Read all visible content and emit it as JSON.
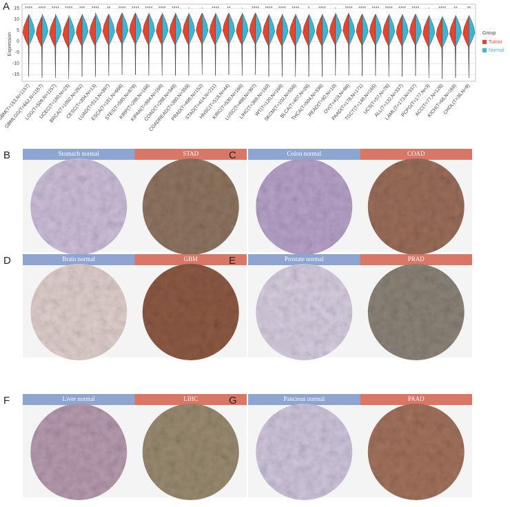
{
  "chart_data": {
    "type": "split-violin",
    "panel_label": "A",
    "y_label": "Expression",
    "categories": [
      "GBM(T=153,N=1157)",
      "GBMLGG(T=662,N=1157)",
      "LGG(T=509,N=1157)",
      "UCEC(T=180,N=23)",
      "BRCA(T=1092,N=292)",
      "CESC(T=304,N=13)",
      "LUAD(T=513,N=397)",
      "ESCA(T=181,N=668)",
      "STES(T=595,N=879)",
      "KIRP(T=288,N=168)",
      "KIPAN(T=884,N=168)",
      "COAD(T=288,N=349)",
      "COADREAD(T=380,N=359)",
      "PRAD(T=495,N=152)",
      "STAD(T=414,N=211)",
      "HNSC(T=518,N=44)",
      "KIRC(T=530,N=168)",
      "LUSC(T=498,N=397)",
      "LIHC(T=369,N=160)",
      "WT(T=120,N=168)",
      "SKCM(T=102,N=558)",
      "BLCA(T=407,N=28)",
      "THCA(T=504,N=338)",
      "READ(T=92,N=10)",
      "OV(T=419,N=88)",
      "PAAD(T=178,N=171)",
      "TGCT(T=148,N=165)",
      "UCS(T=57,N=78)",
      "ALL(T=132,N=337)",
      "LAML(T=173,N=337)",
      "PCPG(T=177,N=3)",
      "ACC(T=77,N=128)",
      "KICH(T=66,N=168)",
      "CHOL(T=36,N=9)"
    ],
    "annotations": [
      "****",
      "****",
      "****",
      "****",
      "***",
      "****",
      "**",
      "****",
      "****",
      "****",
      "****",
      "****",
      "-",
      "-",
      "****",
      "**",
      "-",
      "****",
      "****",
      "****",
      "****",
      "*",
      "****",
      "-",
      "****",
      "****",
      "****",
      "****",
      "****",
      "****",
      "-",
      "****",
      "**",
      "**"
    ],
    "series": [
      {
        "name": "Tumor",
        "color": "#e8432d",
        "values": [
          4,
          3.5,
          3.5,
          3,
          4,
          4,
          4.5,
          5,
          5,
          4.5,
          4.5,
          4.5,
          4.5,
          5,
          4.5,
          5,
          4.5,
          5,
          4,
          4,
          4,
          4,
          4,
          4.5,
          5,
          4.5,
          4.5,
          4,
          4,
          4.5,
          3.5,
          3,
          3.5,
          3.5
        ]
      },
      {
        "name": "Normal",
        "color": "#3cb5d3",
        "values": [
          4.5,
          4.5,
          4.5,
          4,
          4.5,
          5,
          4.5,
          5,
          5,
          5,
          5,
          5,
          5,
          5,
          5,
          5,
          5,
          5,
          4.5,
          4.5,
          4.5,
          4.5,
          4.5,
          5,
          4.5,
          4.5,
          4.5,
          4.5,
          4.5,
          4.5,
          4,
          3.5,
          4,
          4
        ]
      }
    ],
    "legend_title": "Group",
    "legend": "right",
    "ylim": [
      -18,
      17
    ],
    "yticks": [
      15,
      10,
      5,
      0,
      -5,
      -10,
      -15
    ],
    "grid": true
  },
  "panels": [
    {
      "letter": "B",
      "normal": "Stomach normal",
      "tumor": "STAD"
    },
    {
      "letter": "C",
      "normal": "Colon normal",
      "tumor": "COAD"
    },
    {
      "letter": "D",
      "normal": "Brain normal",
      "tumor": "GBM"
    },
    {
      "letter": "E",
      "normal": "Prostate normal",
      "tumor": "PRAD"
    },
    {
      "letter": "F",
      "normal": "Liver normal",
      "tumor": "LIHC"
    },
    {
      "letter": "G",
      "normal": "Pancreas normal",
      "tumor": "PAAD"
    }
  ]
}
